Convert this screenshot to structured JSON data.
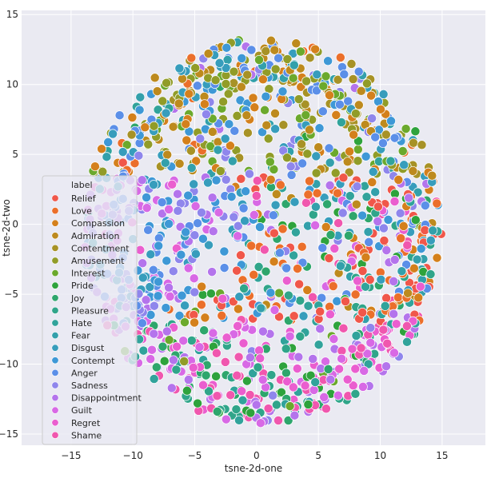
{
  "chart_data": {
    "type": "scatter",
    "title": "",
    "xlabel": "tsne-2d-one",
    "ylabel": "tsne-2d-two",
    "xlim": [
      -19,
      18.5
    ],
    "ylim": [
      -15.8,
      15.3
    ],
    "xticks": [
      -15,
      -10,
      -5,
      0,
      5,
      10,
      15
    ],
    "yticks": [
      -15,
      -10,
      -5,
      0,
      5,
      10,
      15
    ],
    "grid": true,
    "legend_title": "label",
    "legend_position": "center-left",
    "series": [
      {
        "name": "Relief",
        "color": "#f0574a"
      },
      {
        "name": "Love",
        "color": "#eb6f2b"
      },
      {
        "name": "Compassion",
        "color": "#d4801c"
      },
      {
        "name": "Admiration",
        "color": "#bd8a1e"
      },
      {
        "name": "Contentment",
        "color": "#a79226"
      },
      {
        "name": "Amusement",
        "color": "#919c28"
      },
      {
        "name": "Interest",
        "color": "#6ba92d"
      },
      {
        "name": "Pride",
        "color": "#2ea33c"
      },
      {
        "name": "Joy",
        "color": "#2ea66c"
      },
      {
        "name": "Pleasure",
        "color": "#30a58a"
      },
      {
        "name": "Hate",
        "color": "#31a39b"
      },
      {
        "name": "Fear",
        "color": "#33a0ab"
      },
      {
        "name": "Disgust",
        "color": "#379dbc"
      },
      {
        "name": "Contempt",
        "color": "#3e98d6"
      },
      {
        "name": "Anger",
        "color": "#5b8fe8"
      },
      {
        "name": "Sadness",
        "color": "#8f86ec"
      },
      {
        "name": "Disappointment",
        "color": "#b474ec"
      },
      {
        "name": "Guilt",
        "color": "#d869e5"
      },
      {
        "name": "Regret",
        "color": "#ea5ecf"
      },
      {
        "name": "Shame",
        "color": "#f057ae"
      }
    ],
    "points_note": "approximately 1600 points arranged in a roughly circular cloud"
  }
}
